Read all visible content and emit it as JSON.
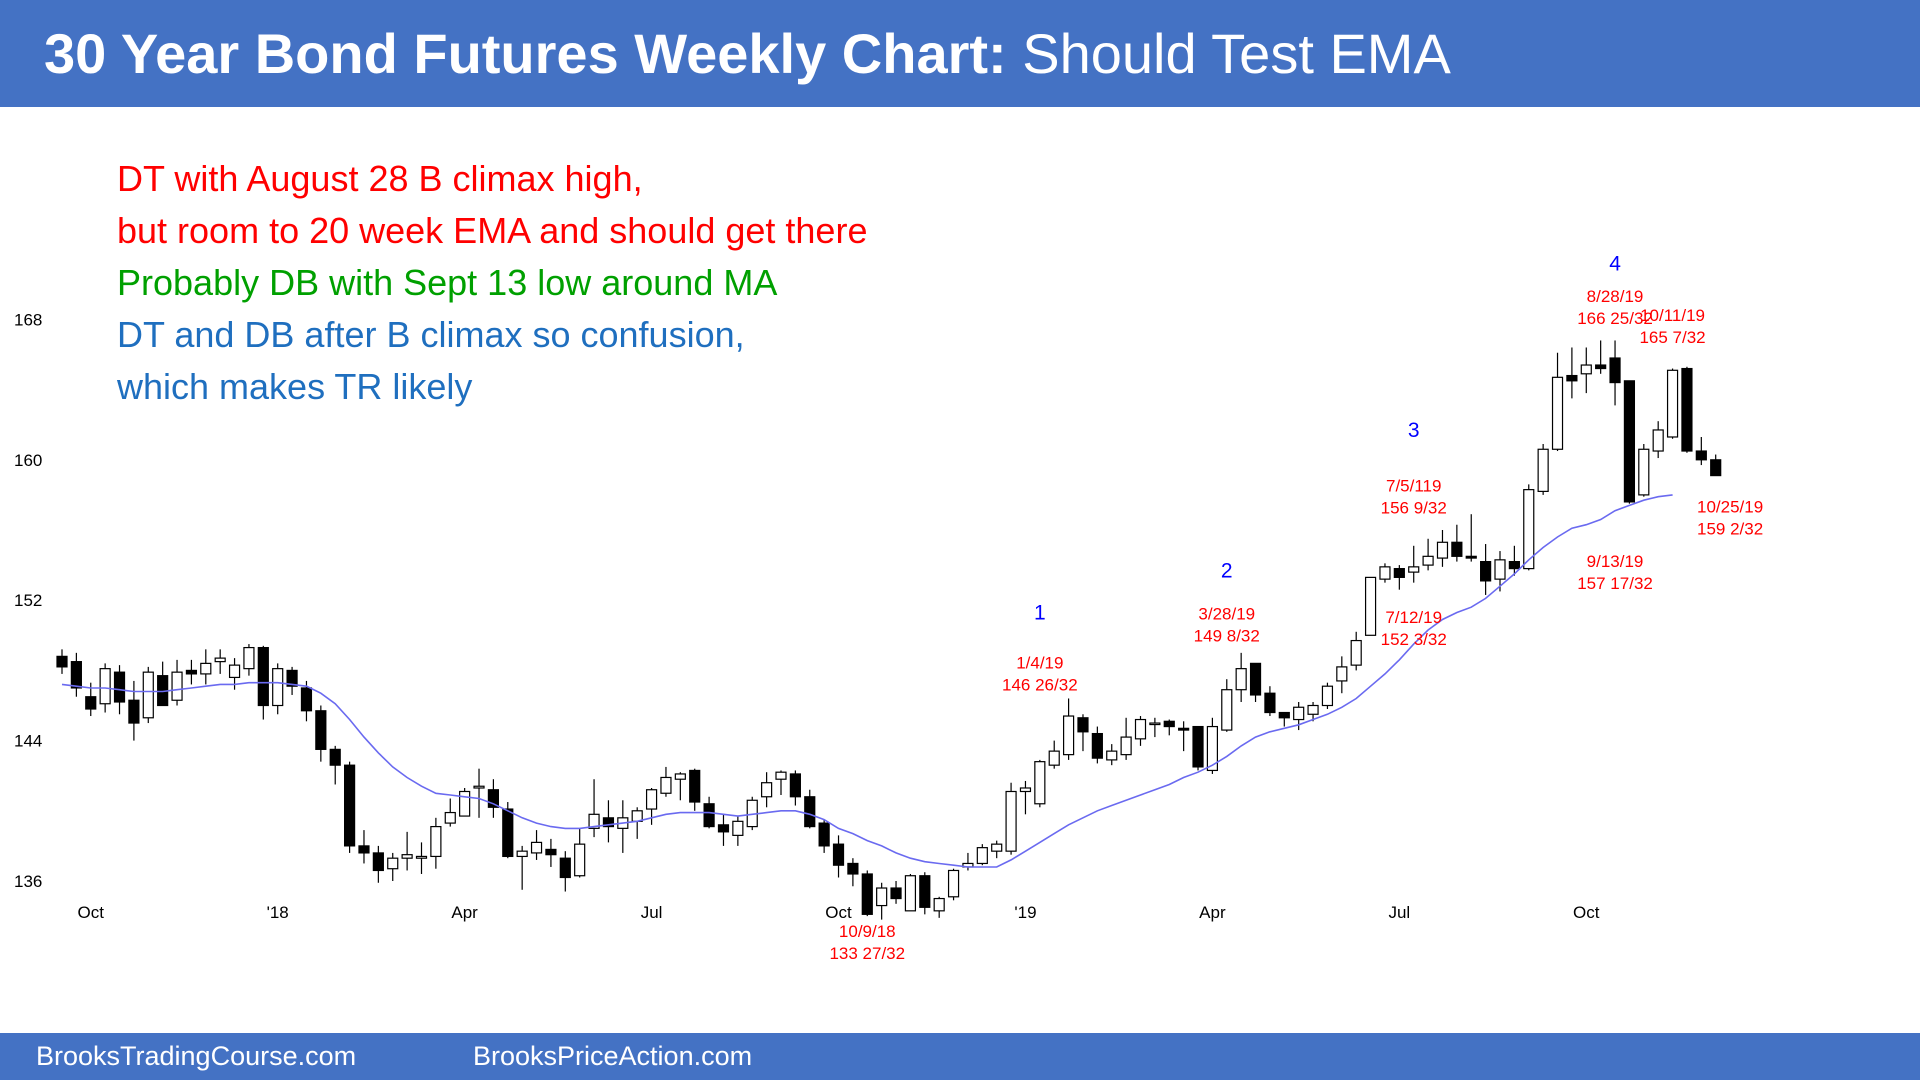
{
  "header": {
    "title_bold": "30 Year Bond Futures Weekly Chart:",
    "title_rest": "Should Test EMA"
  },
  "footer": {
    "site1": "BrooksTradingCourse.com",
    "site2": "BrooksPriceAction.com"
  },
  "colors": {
    "banner": "#4472c4",
    "up_candle": "#ffffff",
    "down_candle": "#000000",
    "ema": "#6a6af0",
    "red_text": "#ff0000",
    "green_text": "#00a000",
    "blue_text": "#1f6fbf",
    "swing_number": "#0000ff"
  },
  "chart_data": {
    "type": "candlestick",
    "timeframe": "weekly",
    "ylim": [
      131,
      172
    ],
    "y_ticks": [
      136,
      144,
      152,
      160,
      168
    ],
    "x_ticks": [
      "Oct",
      "'18",
      "Apr",
      "Jul",
      "Oct",
      "'19",
      "Apr",
      "Jul",
      "Oct"
    ],
    "x_tick_week_index": [
      2,
      15,
      28,
      41,
      54,
      67,
      80,
      93,
      106
    ],
    "series": {
      "ohlc": [
        [
          148.8,
          149.2,
          147.8,
          148.2
        ],
        [
          148.5,
          149.0,
          146.5,
          147.0
        ],
        [
          146.5,
          147.3,
          145.4,
          145.8
        ],
        [
          146.1,
          148.4,
          145.6,
          148.1
        ],
        [
          147.9,
          148.3,
          145.5,
          146.2
        ],
        [
          146.3,
          147.4,
          144.0,
          145.0
        ],
        [
          145.3,
          148.2,
          145.0,
          147.9
        ],
        [
          147.7,
          148.5,
          146.2,
          146.0
        ],
        [
          146.3,
          148.6,
          146.0,
          147.9
        ],
        [
          148.0,
          148.6,
          147.2,
          147.8
        ],
        [
          147.8,
          149.2,
          147.2,
          148.4
        ],
        [
          148.5,
          149.2,
          147.8,
          148.7
        ],
        [
          147.6,
          148.7,
          146.9,
          148.3
        ],
        [
          148.1,
          149.5,
          147.7,
          149.3
        ],
        [
          149.3,
          149.4,
          145.2,
          146.0
        ],
        [
          146.0,
          148.4,
          145.5,
          148.1
        ],
        [
          148.0,
          148.2,
          146.6,
          147.1
        ],
        [
          147.0,
          147.4,
          145.1,
          145.7
        ],
        [
          145.7,
          146.0,
          142.8,
          143.5
        ],
        [
          143.5,
          143.7,
          141.5,
          142.6
        ],
        [
          142.6,
          142.8,
          137.6,
          138.0
        ],
        [
          138.0,
          138.9,
          137.0,
          137.6
        ],
        [
          137.6,
          138.0,
          135.9,
          136.6
        ],
        [
          136.7,
          137.6,
          136.0,
          137.3
        ],
        [
          137.3,
          138.8,
          136.6,
          137.5
        ],
        [
          137.3,
          138.2,
          136.4,
          137.4
        ],
        [
          137.4,
          139.6,
          136.7,
          139.1
        ],
        [
          139.3,
          140.7,
          139.1,
          139.9
        ],
        [
          139.7,
          141.3,
          139.7,
          141.1
        ],
        [
          141.3,
          142.4,
          139.6,
          141.4
        ],
        [
          141.2,
          141.8,
          139.6,
          140.2
        ],
        [
          140.1,
          140.5,
          137.3,
          137.4
        ],
        [
          137.4,
          138.0,
          135.5,
          137.7
        ],
        [
          137.6,
          138.9,
          137.2,
          138.2
        ],
        [
          137.8,
          138.4,
          136.8,
          137.5
        ],
        [
          137.3,
          137.7,
          135.4,
          136.2
        ],
        [
          136.3,
          139.0,
          136.2,
          138.1
        ],
        [
          139.0,
          141.8,
          138.5,
          139.8
        ],
        [
          139.6,
          140.6,
          138.2,
          139.1
        ],
        [
          139.0,
          140.6,
          137.6,
          139.6
        ],
        [
          139.4,
          140.2,
          138.4,
          140.0
        ],
        [
          140.1,
          141.3,
          139.2,
          141.2
        ],
        [
          141.0,
          142.5,
          140.8,
          141.9
        ],
        [
          141.8,
          142.2,
          140.6,
          142.1
        ],
        [
          142.3,
          142.4,
          140.0,
          140.5
        ],
        [
          140.4,
          140.8,
          139.0,
          139.1
        ],
        [
          139.2,
          139.8,
          138.0,
          138.8
        ],
        [
          138.6,
          139.7,
          138.0,
          139.4
        ],
        [
          139.1,
          140.8,
          138.9,
          140.6
        ],
        [
          140.8,
          142.2,
          140.2,
          141.6
        ],
        [
          141.8,
          142.3,
          140.9,
          142.2
        ],
        [
          142.1,
          142.3,
          140.3,
          140.8
        ],
        [
          140.8,
          141.2,
          139.0,
          139.1
        ],
        [
          139.3,
          139.5,
          137.6,
          138.0
        ],
        [
          138.1,
          138.6,
          136.2,
          136.9
        ],
        [
          137.0,
          137.3,
          135.7,
          136.4
        ],
        [
          136.4,
          136.6,
          134.0,
          134.1
        ],
        [
          134.6,
          135.9,
          133.8,
          135.6
        ],
        [
          135.6,
          136.0,
          134.7,
          135.0
        ],
        [
          134.3,
          136.4,
          134.3,
          136.3
        ],
        [
          136.3,
          136.5,
          134.1,
          134.5
        ],
        [
          134.3,
          135.1,
          133.9,
          135.0
        ],
        [
          135.1,
          136.7,
          134.9,
          136.6
        ],
        [
          136.8,
          137.6,
          136.6,
          137.0
        ],
        [
          137.0,
          138.1,
          136.9,
          137.9
        ],
        [
          137.7,
          138.3,
          137.3,
          138.1
        ],
        [
          137.7,
          141.6,
          137.5,
          141.1
        ],
        [
          141.1,
          141.7,
          139.8,
          141.3
        ],
        [
          140.4,
          142.9,
          140.2,
          142.8
        ],
        [
          142.6,
          144.0,
          142.4,
          143.4
        ],
        [
          143.2,
          146.4,
          142.9,
          145.4
        ],
        [
          145.3,
          145.5,
          143.4,
          144.5
        ],
        [
          144.4,
          144.8,
          142.7,
          143.0
        ],
        [
          142.9,
          143.8,
          142.6,
          143.4
        ],
        [
          143.2,
          145.3,
          142.9,
          144.2
        ],
        [
          144.1,
          145.4,
          143.7,
          145.2
        ],
        [
          145.0,
          145.3,
          144.2,
          145.0
        ],
        [
          145.1,
          145.2,
          144.3,
          144.8
        ],
        [
          144.7,
          145.1,
          143.4,
          144.6
        ],
        [
          144.8,
          144.8,
          142.3,
          142.5
        ],
        [
          142.3,
          145.3,
          142.1,
          144.8
        ],
        [
          144.6,
          147.5,
          144.5,
          146.9
        ],
        [
          146.9,
          149.0,
          146.2,
          148.1
        ],
        [
          148.4,
          148.4,
          146.2,
          146.6
        ],
        [
          146.7,
          147.1,
          145.4,
          145.6
        ],
        [
          145.6,
          145.6,
          144.8,
          145.3
        ],
        [
          145.2,
          146.2,
          144.6,
          145.9
        ],
        [
          145.5,
          146.2,
          145.1,
          146.0
        ],
        [
          146.0,
          147.3,
          145.8,
          147.1
        ],
        [
          147.4,
          148.8,
          146.7,
          148.2
        ],
        [
          148.3,
          150.2,
          148.0,
          149.7
        ],
        [
          150.0,
          153.3,
          150.0,
          153.3
        ],
        [
          153.2,
          154.1,
          153.0,
          153.9
        ],
        [
          153.8,
          154.0,
          152.6,
          153.3
        ],
        [
          153.6,
          155.1,
          153.0,
          153.9
        ],
        [
          154.0,
          155.5,
          153.7,
          154.5
        ],
        [
          154.4,
          156.0,
          153.9,
          155.3
        ],
        [
          155.3,
          156.3,
          154.2,
          154.5
        ],
        [
          154.5,
          156.9,
          154.2,
          154.4
        ],
        [
          154.2,
          155.2,
          152.3,
          153.1
        ],
        [
          153.2,
          154.8,
          152.5,
          154.3
        ],
        [
          154.2,
          155.1,
          153.4,
          153.8
        ],
        [
          153.8,
          158.6,
          153.7,
          158.3
        ],
        [
          158.2,
          160.9,
          158.0,
          160.6
        ],
        [
          160.6,
          166.1,
          160.5,
          164.7
        ],
        [
          164.8,
          166.4,
          163.5,
          164.5
        ],
        [
          164.9,
          166.4,
          163.8,
          165.4
        ],
        [
          165.4,
          166.8,
          164.9,
          165.2
        ],
        [
          165.8,
          166.8,
          163.1,
          164.4
        ],
        [
          164.5,
          164.5,
          157.5,
          157.6
        ],
        [
          158.0,
          160.9,
          157.9,
          160.6
        ],
        [
          160.5,
          162.2,
          160.1,
          161.7
        ],
        [
          161.3,
          165.2,
          161.2,
          165.1
        ],
        [
          165.2,
          165.3,
          160.4,
          160.5
        ],
        [
          160.5,
          161.3,
          159.7,
          160.0
        ],
        [
          160.0,
          160.3,
          159.1,
          159.1
        ]
      ],
      "ema20": [
        147.2,
        147.1,
        147.0,
        147.0,
        146.9,
        146.8,
        146.8,
        146.8,
        146.9,
        147.0,
        147.1,
        147.2,
        147.2,
        147.3,
        147.3,
        147.3,
        147.2,
        147.1,
        146.7,
        146.1,
        145.2,
        144.2,
        143.3,
        142.5,
        141.9,
        141.4,
        141.0,
        140.9,
        140.8,
        140.7,
        140.4,
        140.0,
        139.6,
        139.3,
        139.1,
        139.0,
        139.0,
        139.1,
        139.2,
        139.3,
        139.4,
        139.6,
        139.8,
        139.9,
        139.9,
        139.9,
        139.8,
        139.7,
        139.8,
        139.9,
        140.0,
        140.0,
        139.8,
        139.5,
        139.0,
        138.7,
        138.3,
        138.0,
        137.6,
        137.3,
        137.1,
        137.0,
        136.9,
        136.8,
        136.8,
        136.8,
        137.2,
        137.7,
        138.2,
        138.7,
        139.2,
        139.6,
        140.0,
        140.3,
        140.6,
        140.9,
        141.2,
        141.5,
        141.9,
        142.2,
        142.6,
        143.1,
        143.7,
        144.2,
        144.5,
        144.7,
        144.9,
        145.2,
        145.5,
        145.9,
        146.4,
        147.1,
        147.8,
        148.6,
        149.5,
        150.3,
        150.9,
        151.3,
        151.6,
        152.1,
        152.8,
        153.5,
        154.3,
        155.0,
        155.6,
        156.1,
        156.3,
        156.6,
        157.1,
        157.4,
        157.7,
        157.9,
        158.0
      ]
    },
    "annotations": [
      {
        "type": "swing_number",
        "text": "1",
        "week": 68,
        "y": 150.9
      },
      {
        "type": "swing_number",
        "text": "2",
        "week": 81,
        "y": 153.3
      },
      {
        "type": "swing_number",
        "text": "3",
        "week": 94,
        "y": 161.3
      },
      {
        "type": "swing_number",
        "text": "4",
        "week": 108,
        "y": 170.8
      },
      {
        "type": "price_label",
        "date": "1/4/19",
        "price": "146 26/32",
        "week": 68,
        "y": 148.1
      },
      {
        "type": "price_label",
        "date": "3/28/19",
        "price": "149 8/32",
        "week": 81,
        "y": 150.9
      },
      {
        "type": "price_label",
        "date": "7/5/119",
        "price": "156 9/32",
        "week": 94,
        "y": 158.2
      },
      {
        "type": "price_label",
        "date": "8/28/19",
        "price": "166 25/32",
        "week": 108,
        "y": 169.0
      },
      {
        "type": "price_label",
        "date": "10/11/19",
        "price": "165 7/32",
        "week": 112,
        "y": 167.9
      },
      {
        "type": "price_label",
        "date": "7/12/19",
        "price": "152 3/32",
        "week": 94,
        "y": 150.7
      },
      {
        "type": "price_label",
        "date": "9/13/19",
        "price": "157 17/32",
        "week": 108,
        "y": 153.9
      },
      {
        "type": "price_label",
        "date": "10/25/19",
        "price": "159 2/32",
        "week": 116,
        "y": 157.0
      },
      {
        "type": "price_label",
        "date": "10/9/18",
        "price": "133 27/32",
        "week": 56,
        "y": 132.8
      }
    ],
    "commentary": [
      {
        "text": "DT with August 28 B climax high,",
        "color": "red"
      },
      {
        "text": "but room to 20 week EMA and should get there",
        "color": "red"
      },
      {
        "text": "Probably DB with Sept 13 low around MA",
        "color": "green"
      },
      {
        "text": "DT and DB after B climax so confusion,",
        "color": "blue"
      },
      {
        "text": "which makes TR likely",
        "color": "blue"
      }
    ],
    "legend": "none",
    "grid": false
  }
}
